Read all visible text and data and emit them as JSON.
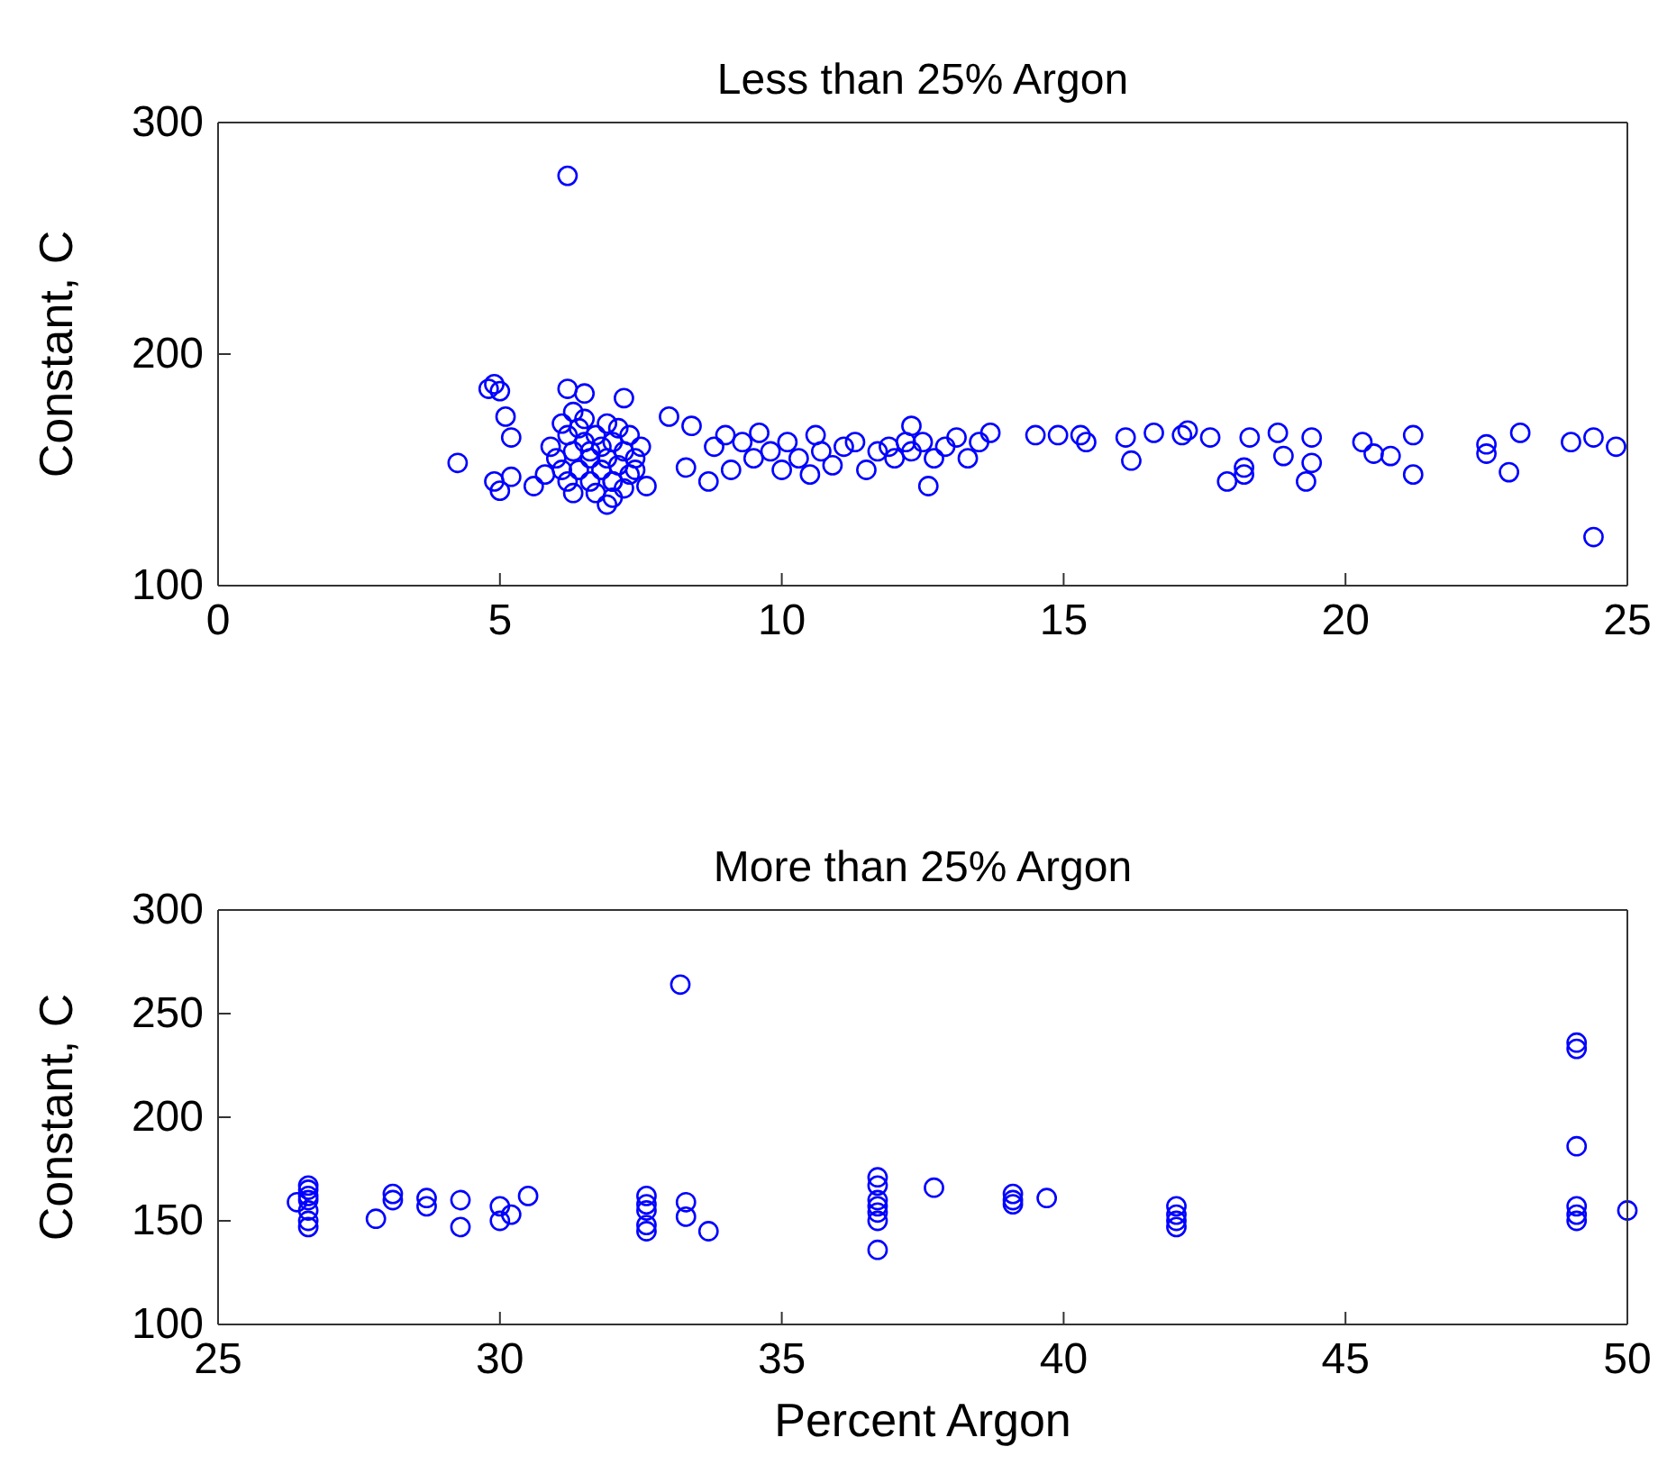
{
  "chart_data": [
    {
      "type": "scatter",
      "title": "Less than 25% Argon",
      "ylabel": "Constant, C",
      "marker": "circle",
      "grid": false,
      "xlim": [
        0,
        25
      ],
      "xticks": [
        0,
        5,
        10,
        15,
        20,
        25
      ],
      "ylim": [
        100,
        300
      ],
      "yticks": [
        100,
        200,
        300
      ],
      "series": [
        {
          "color": "#0000ff",
          "x": [
            6.2,
            4.25,
            4.8,
            4.9,
            5.0,
            5.1,
            5.2,
            4.9,
            5.0,
            5.2,
            5.6,
            5.8,
            6.2,
            6.5,
            7.2,
            5.9,
            6.0,
            6.1,
            6.1,
            6.2,
            6.2,
            6.3,
            6.3,
            6.4,
            6.4,
            6.5,
            6.5,
            6.6,
            6.6,
            6.7,
            6.7,
            6.8,
            6.8,
            6.9,
            6.9,
            7.0,
            7.0,
            7.0,
            7.1,
            7.1,
            7.2,
            7.2,
            7.3,
            7.3,
            7.4,
            7.4,
            6.3,
            6.6,
            6.9,
            7.0,
            7.5,
            7.6,
            8.0,
            8.4,
            8.3,
            8.7,
            8.8,
            9.0,
            9.1,
            9.3,
            9.5,
            9.6,
            9.8,
            10.0,
            10.1,
            10.3,
            10.5,
            10.6,
            10.7,
            10.9,
            11.1,
            11.3,
            11.5,
            11.7,
            11.9,
            12.0,
            12.2,
            12.3,
            12.5,
            12.7,
            12.3,
            12.6,
            12.9,
            13.1,
            13.3,
            13.5,
            13.7,
            14.5,
            14.9,
            15.3,
            15.4,
            16.1,
            16.2,
            16.6,
            17.1,
            17.2,
            17.6,
            17.9,
            18.2,
            18.2,
            18.3,
            18.8,
            18.9,
            19.3,
            19.4,
            19.4,
            20.3,
            20.5,
            20.8,
            21.2,
            21.2,
            22.5,
            22.5,
            22.9,
            23.1,
            24.0,
            24.4,
            24.4,
            24.8
          ],
          "values": [
            277,
            153,
            185,
            187,
            184,
            173,
            164,
            145,
            141,
            147,
            143,
            148,
            185,
            183,
            181,
            160,
            155,
            170,
            150,
            165,
            145,
            175,
            158,
            168,
            150,
            162,
            172,
            155,
            145,
            165,
            140,
            160,
            150,
            170,
            155,
            145,
            162,
            138,
            152,
            168,
            142,
            158,
            148,
            165,
            155,
            150,
            140,
            158,
            135,
            145,
            160,
            143,
            173,
            169,
            151,
            145,
            160,
            165,
            150,
            162,
            155,
            166,
            158,
            150,
            162,
            155,
            148,
            165,
            158,
            152,
            160,
            162,
            150,
            158,
            160,
            155,
            162,
            158,
            162,
            155,
            169,
            143,
            160,
            164,
            155,
            162,
            166,
            165,
            165,
            165,
            162,
            164,
            154,
            166,
            165,
            167,
            164,
            145,
            151,
            148,
            164,
            166,
            156,
            145,
            164,
            153,
            162,
            157,
            156,
            165,
            148,
            161,
            157,
            149,
            166,
            162,
            164,
            121,
            160
          ]
        }
      ]
    },
    {
      "type": "scatter",
      "title": "More than 25% Argon",
      "xlabel": "Percent Argon",
      "ylabel": "Constant, C",
      "marker": "circle",
      "grid": false,
      "xlim": [
        25,
        50
      ],
      "xticks": [
        25,
        30,
        35,
        40,
        45,
        50
      ],
      "ylim": [
        100,
        300
      ],
      "yticks": [
        100,
        150,
        200,
        250,
        300
      ],
      "series": [
        {
          "color": "#0000ff",
          "x": [
            26.6,
            26.6,
            26.6,
            26.6,
            26.6,
            26.6,
            26.6,
            26.4,
            27.8,
            28.1,
            28.1,
            28.7,
            28.7,
            29.3,
            29.3,
            30.0,
            30.0,
            30.2,
            30.5,
            33.2,
            32.6,
            32.6,
            32.6,
            32.6,
            32.6,
            33.3,
            33.3,
            33.7,
            36.7,
            36.7,
            36.7,
            36.7,
            36.7,
            36.7,
            36.7,
            37.7,
            39.1,
            39.1,
            39.1,
            39.7,
            42.0,
            42.0,
            42.0,
            42.0,
            49.1,
            49.1,
            49.1,
            49.1,
            49.1,
            49.1,
            50.0
          ],
          "values": [
            167,
            165,
            162,
            160,
            155,
            150,
            147,
            159,
            151,
            163,
            160,
            161,
            157,
            160,
            147,
            157,
            150,
            153,
            162,
            264,
            162,
            158,
            155,
            148,
            145,
            159,
            152,
            145,
            171,
            167,
            160,
            157,
            154,
            150,
            136,
            166,
            163,
            160,
            158,
            161,
            157,
            153,
            150,
            147,
            236,
            233,
            186,
            157,
            153,
            150,
            155
          ]
        }
      ]
    }
  ]
}
